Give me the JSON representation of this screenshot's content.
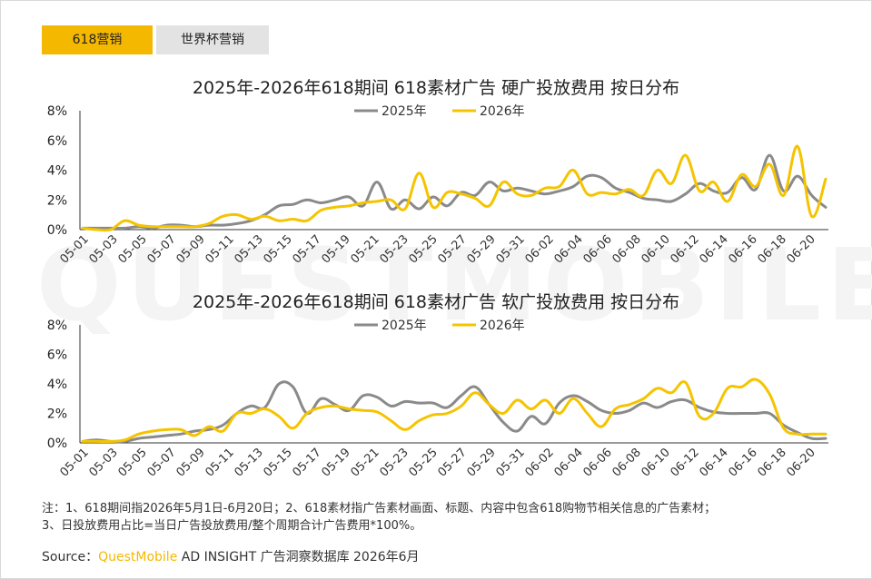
{
  "tabs": [
    {
      "label": "618营销",
      "active": true
    },
    {
      "label": "世界杯营销",
      "active": false
    }
  ],
  "watermark": "QUESTMOBILE",
  "colors": {
    "series_2025": "#8a8a8a",
    "series_2026": "#f5c400",
    "accent": "#f5b800"
  },
  "chart_data": [
    {
      "type": "line",
      "title": "2025年-2026年618期间 618素材广告 硬广投放费用 按日分布",
      "ylim": [
        0,
        8
      ],
      "yticks": [
        "0%",
        "2%",
        "4%",
        "6%",
        "8%"
      ],
      "xlabels": [
        "05-01",
        "05-03",
        "05-05",
        "05-07",
        "05-09",
        "05-11",
        "05-13",
        "05-15",
        "05-17",
        "05-19",
        "05-21",
        "05-23",
        "05-25",
        "05-27",
        "05-29",
        "05-31",
        "06-02",
        "06-04",
        "06-06",
        "06-08",
        "06-10",
        "06-12",
        "06-14",
        "06-16",
        "06-18",
        "06-20"
      ],
      "series": [
        {
          "name": "2025年",
          "values": [
            0.1,
            0.1,
            0.1,
            0.1,
            0.2,
            0.1,
            0.3,
            0.3,
            0.2,
            0.3,
            0.3,
            0.4,
            0.6,
            1.0,
            1.6,
            1.7,
            2.0,
            1.8,
            2.0,
            2.2,
            1.6,
            3.2,
            1.4,
            2.0,
            1.4,
            2.2,
            1.6,
            2.5,
            2.3,
            3.2,
            2.6,
            2.8,
            2.6,
            2.4,
            2.6,
            2.9,
            3.6,
            3.5,
            2.8,
            2.5,
            2.1,
            2.0,
            1.9,
            2.4,
            3.1,
            2.6,
            2.5,
            3.5,
            2.7,
            5.0,
            2.6,
            3.6,
            2.3,
            1.5
          ]
        },
        {
          "name": "2026年",
          "values": [
            0.1,
            0.0,
            0.0,
            0.6,
            0.3,
            0.2,
            0.2,
            0.2,
            0.2,
            0.4,
            0.9,
            1.0,
            0.7,
            0.9,
            0.6,
            0.7,
            0.6,
            1.3,
            1.5,
            1.6,
            1.8,
            1.9,
            2.0,
            1.4,
            3.8,
            1.5,
            2.5,
            2.4,
            2.1,
            1.6,
            3.2,
            2.4,
            2.3,
            2.8,
            2.9,
            4.0,
            2.4,
            2.5,
            2.4,
            2.7,
            2.3,
            4.0,
            3.1,
            5.0,
            2.6,
            3.2,
            1.9,
            3.7,
            2.9,
            4.4,
            2.3,
            5.6,
            0.9,
            3.4
          ]
        }
      ]
    },
    {
      "type": "line",
      "title": "2025年-2026年618期间 618素材广告 软广投放费用 按日分布",
      "ylim": [
        0,
        8
      ],
      "yticks": [
        "0%",
        "2%",
        "4%",
        "6%",
        "8%"
      ],
      "xlabels": [
        "05-01",
        "05-03",
        "05-05",
        "05-07",
        "05-09",
        "05-11",
        "05-13",
        "05-15",
        "05-17",
        "05-19",
        "05-21",
        "05-23",
        "05-25",
        "05-27",
        "05-29",
        "05-31",
        "06-02",
        "06-04",
        "06-06",
        "06-08",
        "06-10",
        "06-12",
        "06-14",
        "06-16",
        "06-18",
        "06-20"
      ],
      "series": [
        {
          "name": "2025年",
          "values": [
            0.1,
            0.2,
            0.1,
            0.1,
            0.3,
            0.4,
            0.5,
            0.6,
            0.8,
            0.9,
            1.2,
            2.0,
            2.5,
            2.4,
            4.0,
            3.8,
            2.0,
            3.0,
            2.6,
            2.2,
            3.2,
            3.1,
            2.5,
            2.8,
            2.7,
            2.7,
            2.4,
            3.2,
            3.8,
            2.6,
            1.4,
            0.8,
            1.8,
            1.3,
            2.7,
            3.2,
            2.8,
            2.2,
            2.0,
            2.2,
            2.7,
            2.4,
            2.8,
            2.9,
            2.4,
            2.1,
            2.0,
            2.0,
            2.0,
            2.0,
            1.2,
            0.7,
            0.3,
            0.3
          ]
        },
        {
          "name": "2026年",
          "values": [
            0.1,
            0.1,
            0.1,
            0.2,
            0.6,
            0.8,
            0.9,
            0.9,
            0.5,
            1.1,
            0.8,
            2.0,
            2.0,
            2.3,
            1.8,
            1.0,
            2.0,
            2.4,
            2.5,
            2.3,
            2.2,
            2.1,
            1.5,
            0.9,
            1.5,
            1.9,
            2.0,
            2.5,
            3.4,
            2.6,
            2.0,
            2.9,
            2.3,
            2.9,
            2.0,
            3.0,
            2.0,
            1.1,
            2.3,
            2.6,
            3.0,
            3.7,
            3.4,
            4.1,
            1.8,
            2.0,
            3.7,
            3.8,
            4.3,
            3.3,
            1.0,
            0.6,
            0.6,
            0.6
          ]
        }
      ]
    }
  ],
  "note": {
    "line1": "注：1、618期间指2026年5月1日-6月20日；2、618素材指广告素材画面、标题、内容中包含618购物节相关信息的广告素材；",
    "line2": "3、日投放费用占比=当日广告投放费用/整个周期合计广告费用*100%。"
  },
  "source": {
    "label": "Source：",
    "brand": "QuestMobile",
    "text": " AD INSIGHT 广告洞察数据库 2026年6月"
  }
}
